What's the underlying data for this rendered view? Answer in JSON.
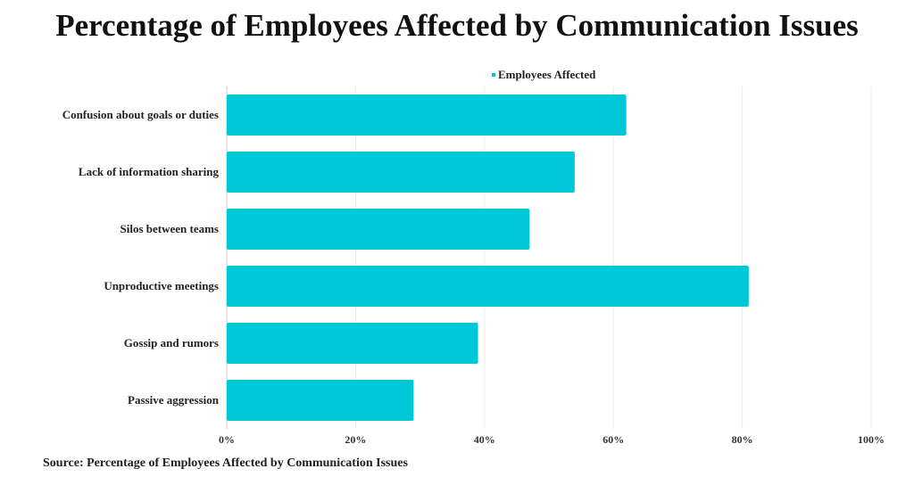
{
  "chart_data": {
    "type": "bar",
    "orientation": "horizontal",
    "title": "Percentage of Employees Affected by Communication Issues",
    "categories": [
      "Confusion about goals or duties",
      "Lack of information sharing",
      "Silos between teams",
      "Unproductive meetings",
      "Gossip and rumors",
      "Passive aggression"
    ],
    "series": [
      {
        "name": "Employees Affected",
        "values": [
          62,
          54,
          47,
          81,
          39,
          29
        ],
        "color": "#00C8D9"
      }
    ],
    "xlim": [
      0,
      100
    ],
    "xticks": [
      0,
      20,
      40,
      60,
      80,
      100
    ],
    "xtick_labels": [
      "0%",
      "20%",
      "40%",
      "60%",
      "80%",
      "100%"
    ],
    "grid": "vertical",
    "legend_position": "top-center",
    "source": "Source: Percentage of Employees Affected by Communication Issues"
  }
}
